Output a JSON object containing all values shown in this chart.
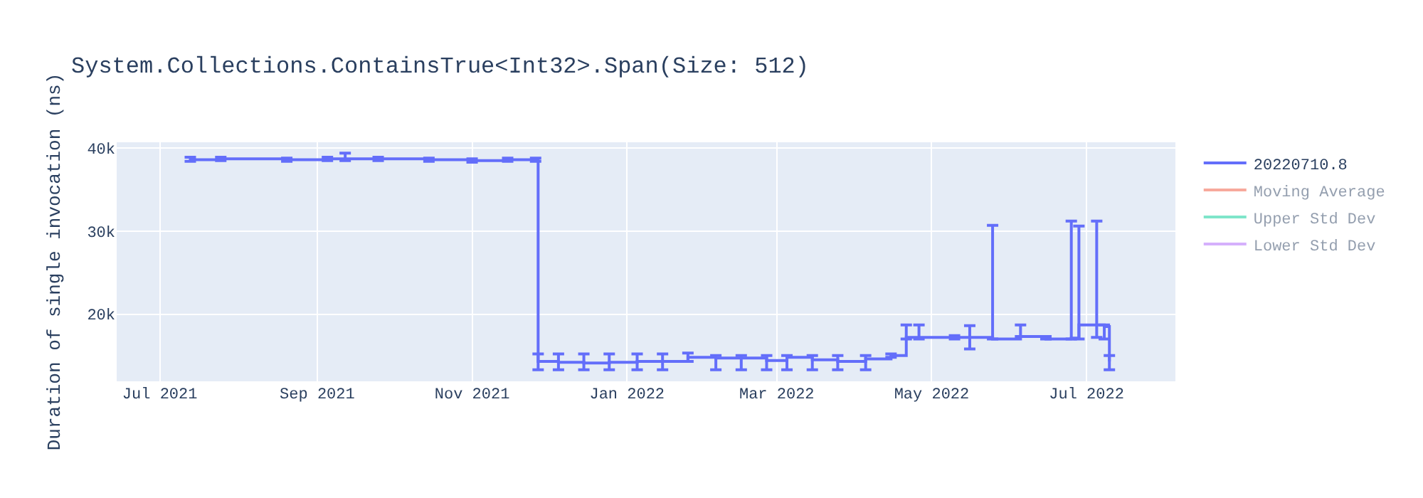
{
  "chart_data": {
    "type": "step",
    "title": "System.Collections.ContainsTrue<Int32>.Span(Size: 512)",
    "ylabel": "Duration of single invocation (ns)",
    "x": [
      "2021-07-13",
      "2021-07-25",
      "2021-08-20",
      "2021-09-05",
      "2021-09-12",
      "2021-09-25",
      "2021-10-15",
      "2021-11-01",
      "2021-11-15",
      "2021-11-26",
      "2021-11-27",
      "2021-12-05",
      "2021-12-15",
      "2021-12-25",
      "2022-01-05",
      "2022-01-15",
      "2022-01-25",
      "2022-02-05",
      "2022-02-15",
      "2022-02-25",
      "2022-03-05",
      "2022-03-15",
      "2022-03-25",
      "2022-04-05",
      "2022-04-15",
      "2022-04-21",
      "2022-04-26",
      "2022-05-10",
      "2022-05-16",
      "2022-05-25",
      "2022-06-05",
      "2022-06-15",
      "2022-06-25",
      "2022-06-28",
      "2022-07-05",
      "2022-07-08",
      "2022-07-10"
    ],
    "series": [
      {
        "name": "20220710.8",
        "color": "#636efa",
        "values": [
          38600,
          38700,
          38600,
          38700,
          38700,
          38700,
          38600,
          38500,
          38600,
          38600,
          14300,
          14200,
          14100,
          14200,
          14300,
          14300,
          14800,
          14700,
          14700,
          14400,
          14800,
          14500,
          14300,
          14600,
          15000,
          17200,
          17200,
          17200,
          17200,
          17000,
          17300,
          17000,
          17100,
          18700,
          18700,
          18500,
          14300
        ],
        "errors": [
          [
            38400,
            38900
          ],
          [
            38500,
            38900
          ],
          [
            38400,
            38800
          ],
          [
            38500,
            38900
          ],
          [
            38500,
            39400
          ],
          [
            38500,
            38900
          ],
          [
            38400,
            38800
          ],
          [
            38300,
            38700
          ],
          [
            38400,
            38800
          ],
          [
            38400,
            38800
          ],
          [
            13300,
            15200
          ],
          [
            13300,
            15200
          ],
          [
            13300,
            15200
          ],
          [
            13300,
            15200
          ],
          [
            13300,
            15200
          ],
          [
            13300,
            15200
          ],
          [
            14300,
            15300
          ],
          [
            13300,
            15000
          ],
          [
            13300,
            15000
          ],
          [
            13300,
            15000
          ],
          [
            13300,
            15000
          ],
          [
            13300,
            15000
          ],
          [
            13300,
            15000
          ],
          [
            13300,
            15000
          ],
          [
            14800,
            15200
          ],
          [
            17000,
            18700
          ],
          [
            17000,
            18700
          ],
          [
            17000,
            17400
          ],
          [
            15800,
            18600
          ],
          [
            17000,
            30700
          ],
          [
            17300,
            18700
          ],
          [
            17000,
            17300
          ],
          [
            17000,
            31200
          ],
          [
            17000,
            30600
          ],
          [
            17200,
            31200
          ],
          [
            17000,
            18700
          ],
          [
            13300,
            15000
          ]
        ]
      },
      {
        "name": "Moving Average",
        "color": "#ef553b",
        "values": [
          null,
          null,
          null,
          null,
          null,
          null,
          null,
          null,
          null,
          null,
          null,
          null,
          null,
          null,
          null,
          null,
          null,
          null,
          null,
          null,
          null,
          null,
          null,
          null,
          null,
          null,
          null,
          null,
          null,
          null,
          null,
          null,
          null,
          null,
          null,
          null,
          null
        ]
      },
      {
        "name": "Upper Std Dev",
        "color": "#00cc96",
        "values": [
          null,
          null,
          null,
          null,
          null,
          null,
          null,
          null,
          null,
          null,
          null,
          null,
          null,
          null,
          null,
          null,
          null,
          null,
          null,
          null,
          null,
          null,
          null,
          null,
          null,
          null,
          null,
          null,
          null,
          null,
          null,
          null,
          null,
          null,
          null,
          null,
          null
        ]
      },
      {
        "name": "Lower Std Dev",
        "color": "#ab63fa",
        "values": [
          null,
          null,
          null,
          null,
          null,
          null,
          null,
          null,
          null,
          null,
          null,
          null,
          null,
          null,
          null,
          null,
          null,
          null,
          null,
          null,
          null,
          null,
          null,
          null,
          null,
          null,
          null,
          null,
          null,
          null,
          null,
          null,
          null,
          null,
          null,
          null,
          null
        ]
      }
    ],
    "xlim": [
      "2021-06-14",
      "2022-08-05"
    ],
    "xticks": [
      {
        "value": "2021-07-01",
        "label": "Jul 2021"
      },
      {
        "value": "2021-09-01",
        "label": "Sep 2021"
      },
      {
        "value": "2021-11-01",
        "label": "Nov 2021"
      },
      {
        "value": "2022-01-01",
        "label": "Jan 2022"
      },
      {
        "value": "2022-03-01",
        "label": "Mar 2022"
      },
      {
        "value": "2022-05-01",
        "label": "May 2022"
      },
      {
        "value": "2022-07-01",
        "label": "Jul 2022"
      }
    ],
    "ylim": [
      11900,
      40700
    ],
    "yticks": [
      {
        "value": 20000,
        "label": "20k"
      },
      {
        "value": 30000,
        "label": "30k"
      },
      {
        "value": 40000,
        "label": "40k"
      }
    ],
    "grid": true,
    "legend": "top right",
    "marker": "none",
    "line_style": "solid"
  }
}
